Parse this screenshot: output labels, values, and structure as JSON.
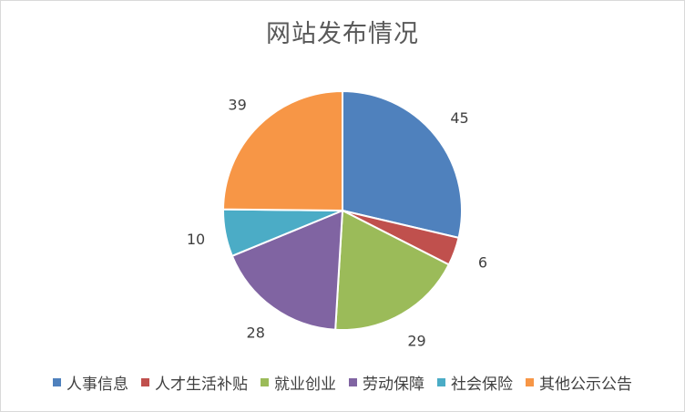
{
  "chart_data": {
    "type": "pie",
    "title": "网站发布情况",
    "categories": [
      "人事信息",
      "人才生活补贴",
      "就业创业",
      "劳动保障",
      "社会保险",
      "其他公示公告"
    ],
    "values": [
      45,
      6,
      29,
      28,
      10,
      39
    ],
    "colors": [
      "#4f81bd",
      "#c0504d",
      "#9bbb59",
      "#8064a2",
      "#4bacc6",
      "#f79646"
    ],
    "data_labels": [
      "45",
      "6",
      "29",
      "28",
      "10",
      "39"
    ],
    "start_angle_deg": 0,
    "direction": "clockwise",
    "legend_position": "bottom"
  }
}
